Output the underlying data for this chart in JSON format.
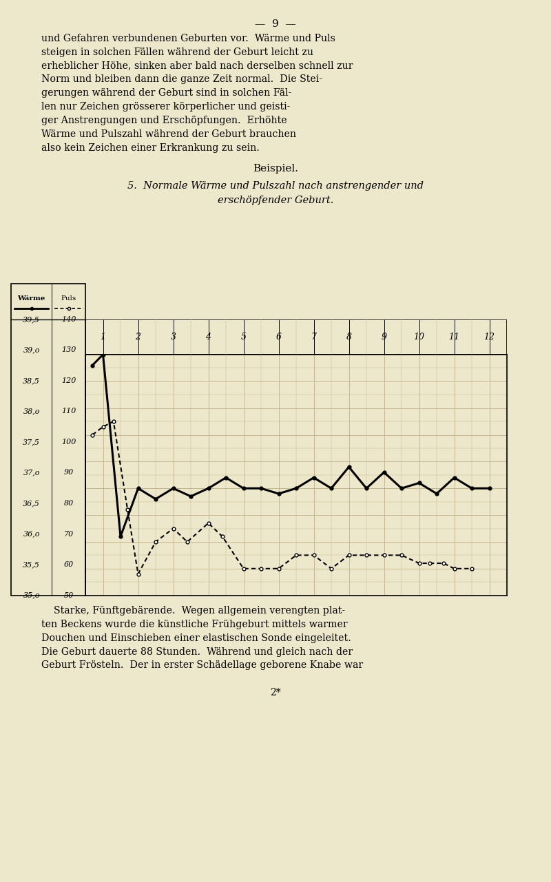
{
  "title_line1": "5.  Normale Wärme und Pulszahl nach anstrengender und",
  "title_line2": "erschöpfender Geburt.",
  "bg_color": "#ede8cc",
  "grid_color": "#c8b890",
  "warme_x": [
    0.7,
    1.0,
    1.5,
    2.0,
    2.5,
    3.0,
    3.5,
    4.0,
    4.5,
    5.0,
    5.5,
    6.0,
    6.5,
    7.0,
    7.5,
    8.0,
    8.5,
    9.0,
    9.5,
    10.0,
    10.5,
    11.0,
    11.5,
    12.0
  ],
  "warme_y": [
    39.3,
    39.5,
    36.1,
    37.0,
    36.8,
    37.0,
    36.85,
    37.0,
    37.2,
    37.0,
    37.0,
    36.9,
    37.0,
    37.2,
    37.0,
    37.4,
    37.0,
    37.3,
    37.0,
    37.1,
    36.9,
    37.2,
    37.0,
    37.0
  ],
  "puls_x": [
    0.7,
    1.0,
    1.3,
    1.7,
    2.0,
    2.5,
    3.0,
    3.4,
    4.0,
    4.4,
    5.0,
    5.5,
    6.0,
    6.5,
    7.0,
    7.5,
    8.0,
    8.5,
    9.0,
    9.5,
    10.0,
    10.3,
    10.7,
    11.0,
    11.5
  ],
  "puls_raw": [
    110,
    113,
    115,
    82,
    58,
    70,
    75,
    70,
    77,
    72,
    60,
    60,
    60,
    65,
    65,
    60,
    65,
    65,
    65,
    65,
    62,
    62,
    62,
    60,
    60
  ],
  "warme_tick_vals": [
    35.0,
    35.5,
    36.0,
    36.5,
    37.0,
    37.5,
    38.0,
    38.5,
    39.0,
    39.5
  ],
  "warme_tick_labels": [
    "35,o",
    "35,5",
    "36,o",
    "36,5",
    "37,o",
    "37,5",
    "38,o",
    "38,5",
    "39,o",
    "39,5"
  ],
  "puls_tick_vals": [
    50,
    60,
    70,
    80,
    90,
    100,
    110,
    120,
    130,
    140
  ],
  "puls_tick_labels": [
    "50",
    "60",
    "70",
    "80",
    "90",
    "100",
    "110",
    "120",
    "130",
    "140"
  ],
  "x_col_labels": [
    "1",
    "2",
    "3",
    "4",
    "5",
    "6",
    "7",
    "8",
    "9",
    "10",
    "11",
    "12"
  ],
  "page_number": "9"
}
